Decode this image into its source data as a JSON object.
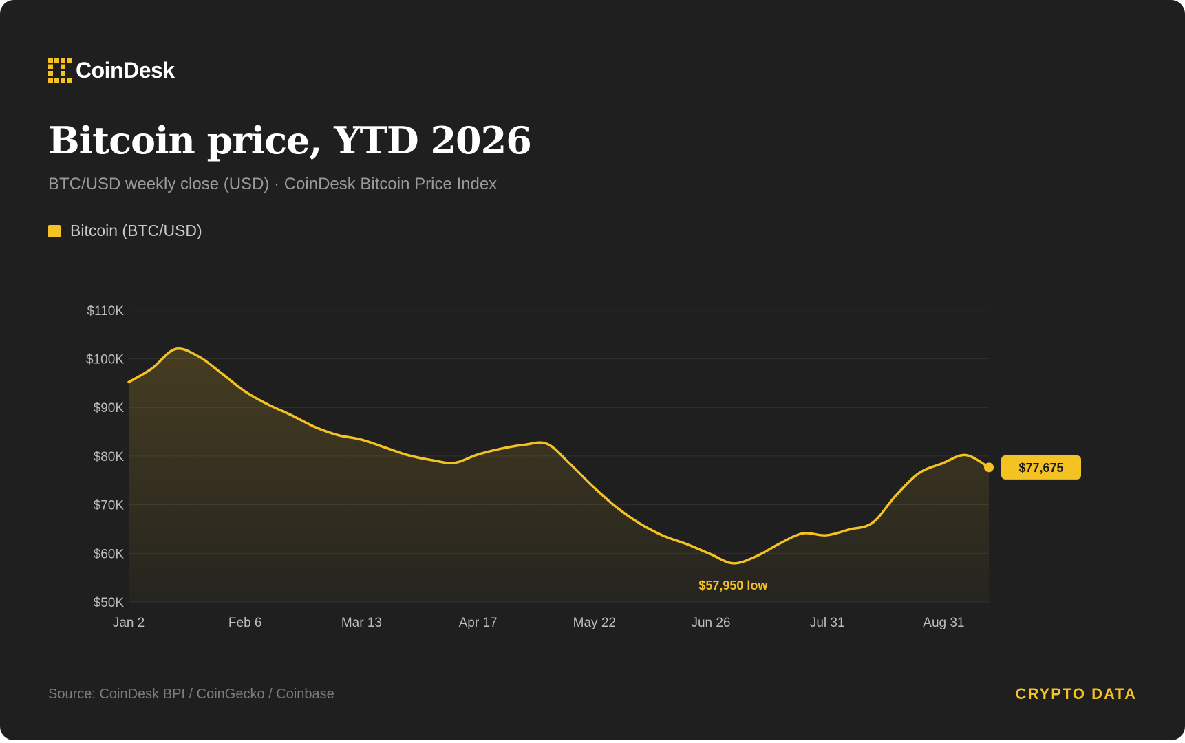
{
  "brand": {
    "name": "CoinDesk",
    "logo_icon": "coindesk-logo-icon",
    "accent_color": "#f4c223"
  },
  "header": {
    "title": "Bitcoin price, YTD 2026",
    "subtitle": "BTC/USD weekly close (USD) · CoinDesk Bitcoin Price Index"
  },
  "legend": {
    "label": "Bitcoin (BTC/USD)",
    "color": "#f4c223"
  },
  "footer": {
    "source": "Source: CoinDesk BPI / CoinGecko / Coinbase",
    "tag": "CRYPTO DATA"
  },
  "chart_data": {
    "type": "area",
    "title": "Bitcoin price, YTD 2026",
    "subtitle": "BTC/USD weekly close (USD) · CoinDesk Bitcoin Price Index",
    "xlabel": "",
    "ylabel": "",
    "x_ticks": [
      "Jan 2",
      "Feb 6",
      "Mar 13",
      "Apr 17",
      "May 22",
      "Jun 26",
      "Jul 31",
      "Aug 31"
    ],
    "y_ticks": [
      "$50K",
      "$60K",
      "$70K",
      "$80K",
      "$90K",
      "$100K",
      "$110K"
    ],
    "ylim": [
      50000,
      115000
    ],
    "grid": true,
    "legend_position": "top-left",
    "series": [
      {
        "name": "Bitcoin (BTC/USD)",
        "color": "#f4c223",
        "points": [
          [
            "2026-01-02",
            95200
          ],
          [
            "2026-01-09",
            98000
          ],
          [
            "2026-01-16",
            102000
          ],
          [
            "2026-01-23",
            100500
          ],
          [
            "2026-01-30",
            97000
          ],
          [
            "2026-02-06",
            93300
          ],
          [
            "2026-02-13",
            90600
          ],
          [
            "2026-02-20",
            88400
          ],
          [
            "2026-02-27",
            86000
          ],
          [
            "2026-03-06",
            84300
          ],
          [
            "2026-03-13",
            83400
          ],
          [
            "2026-03-20",
            81800
          ],
          [
            "2026-03-27",
            80200
          ],
          [
            "2026-04-03",
            79200
          ],
          [
            "2026-04-10",
            78600
          ],
          [
            "2026-04-17",
            80300
          ],
          [
            "2026-04-24",
            81500
          ],
          [
            "2026-05-01",
            82300
          ],
          [
            "2026-05-08",
            82500
          ],
          [
            "2026-05-15",
            78300
          ],
          [
            "2026-05-22",
            73600
          ],
          [
            "2026-05-29",
            69400
          ],
          [
            "2026-06-05",
            66100
          ],
          [
            "2026-06-12",
            63600
          ],
          [
            "2026-06-19",
            61900
          ],
          [
            "2026-06-26",
            59900
          ],
          [
            "2026-07-03",
            57950
          ],
          [
            "2026-07-10",
            59400
          ],
          [
            "2026-07-17",
            62000
          ],
          [
            "2026-07-24",
            64100
          ],
          [
            "2026-07-31",
            63700
          ],
          [
            "2026-08-07",
            64900
          ],
          [
            "2026-08-14",
            66300
          ],
          [
            "2026-08-21",
            71900
          ],
          [
            "2026-08-28",
            76500
          ],
          [
            "2026-09-04",
            78500
          ],
          [
            "2026-09-11",
            80200
          ],
          [
            "2026-09-18",
            77675
          ]
        ]
      }
    ],
    "annotations": [
      {
        "text": "$57,950 low",
        "x": "2026-07-03",
        "y": 57950
      },
      {
        "text": "$77,675",
        "x": "2026-09-18",
        "y": 77675,
        "style": "callout"
      }
    ]
  }
}
